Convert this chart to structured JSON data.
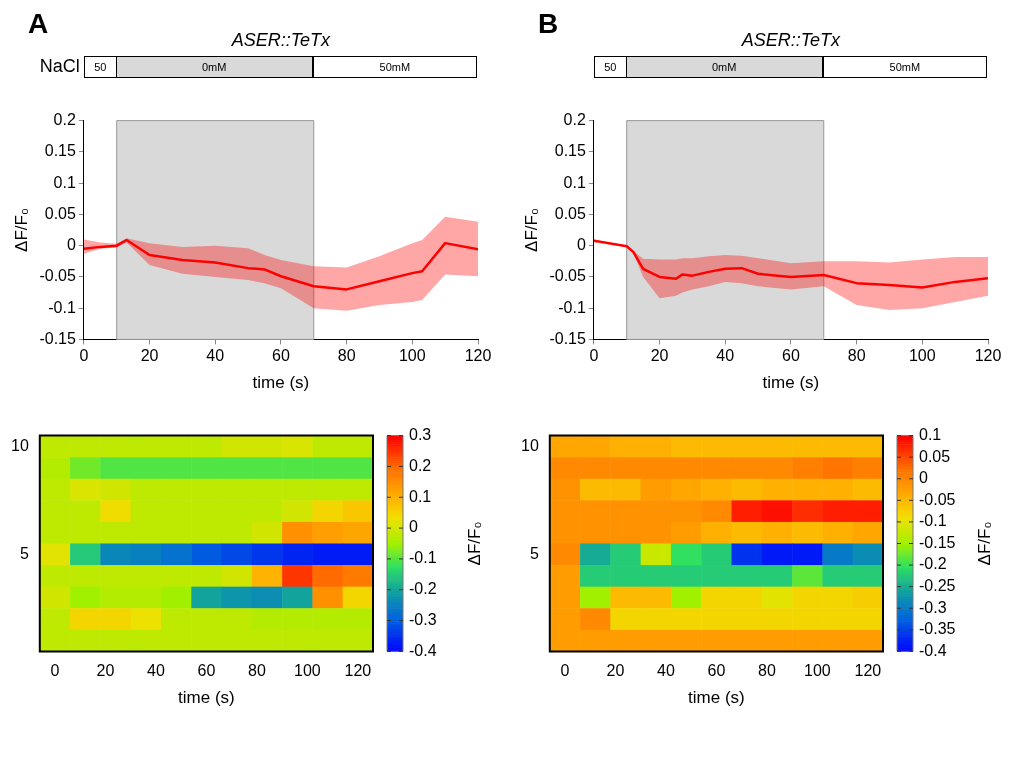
{
  "chart_data": [
    {
      "type": "line",
      "title": "ASER::TeTx",
      "xlabel": "time (s)",
      "ylabel": "ΔF/F₀",
      "annotations": [
        "A",
        "NaCl",
        "50",
        "0mM",
        "50mM"
      ],
      "x": [
        0,
        5,
        10,
        13,
        20,
        30,
        40,
        50,
        55,
        60,
        70,
        80,
        90,
        100,
        103,
        110,
        120
      ],
      "series": [
        {
          "color": "#ff0000",
          "values": [
            -0.005,
            -0.002,
            0,
            0.009,
            -0.015,
            -0.023,
            -0.027,
            -0.036,
            -0.038,
            -0.049,
            -0.065,
            -0.07,
            -0.057,
            -0.044,
            -0.041,
            0.004,
            -0.006
          ],
          "upper": [
            0.01,
            0.005,
            0.003,
            0.012,
            0.004,
            -0.002,
            0,
            -0.004,
            -0.015,
            -0.023,
            -0.033,
            -0.035,
            -0.017,
            0.004,
            0.009,
            0.046,
            0.038
          ],
          "lower": [
            -0.013,
            -0.005,
            -0.003,
            0.005,
            -0.031,
            -0.045,
            -0.05,
            -0.055,
            -0.06,
            -0.068,
            -0.1,
            -0.104,
            -0.095,
            -0.09,
            -0.087,
            -0.046,
            -0.049
          ]
        }
      ],
      "bands": [
        {
          "axis": "x",
          "from": 10,
          "to": 70,
          "color": "#d9d9d9"
        }
      ],
      "xlim": [
        0,
        120
      ],
      "xticks": [
        0,
        20,
        40,
        60,
        80,
        100,
        120
      ],
      "ylim": [
        -0.15,
        0.2
      ],
      "yticks": [
        -0.15,
        -0.1,
        -0.05,
        0,
        0.05,
        0.1,
        0.15,
        0.2
      ]
    },
    {
      "type": "line",
      "title": "ASER::TeTx",
      "xlabel": "time (s)",
      "ylabel": "ΔF/F₀",
      "annotations": [
        "B",
        "50",
        "0mM",
        "50mM"
      ],
      "x": [
        0,
        10,
        12,
        15,
        20,
        25,
        27,
        30,
        35,
        40,
        45,
        50,
        60,
        70,
        80,
        90,
        100,
        110,
        120
      ],
      "series": [
        {
          "color": "#ff0000",
          "values": [
            0.008,
            -0.001,
            -0.01,
            -0.037,
            -0.05,
            -0.053,
            -0.046,
            -0.048,
            -0.042,
            -0.037,
            -0.036,
            -0.045,
            -0.05,
            -0.047,
            -0.06,
            -0.063,
            -0.067,
            -0.058,
            -0.052
          ],
          "upper": [
            0.01,
            0,
            -0.008,
            -0.021,
            -0.022,
            -0.022,
            -0.02,
            -0.02,
            -0.017,
            -0.015,
            -0.016,
            -0.02,
            -0.028,
            -0.025,
            -0.025,
            -0.027,
            -0.022,
            -0.018,
            -0.018
          ],
          "lower": [
            0.005,
            -0.002,
            -0.012,
            -0.05,
            -0.084,
            -0.08,
            -0.075,
            -0.07,
            -0.065,
            -0.058,
            -0.06,
            -0.065,
            -0.07,
            -0.065,
            -0.095,
            -0.103,
            -0.1,
            -0.09,
            -0.08
          ]
        }
      ],
      "bands": [
        {
          "axis": "x",
          "from": 10,
          "to": 70,
          "color": "#d9d9d9"
        }
      ],
      "xlim": [
        0,
        120
      ],
      "xticks": [
        0,
        20,
        40,
        60,
        80,
        100,
        120
      ],
      "ylim": [
        -0.15,
        0.2
      ],
      "yticks": [
        -0.15,
        -0.1,
        -0.05,
        0,
        0.05,
        0.1,
        0.15,
        0.2
      ]
    },
    {
      "type": "heatmap",
      "xlabel": "time (s)",
      "clabel": "ΔF/F₀",
      "x": [
        0,
        12,
        24,
        36,
        48,
        60,
        72,
        84,
        96,
        108,
        120
      ],
      "y_categories": [
        "10",
        null,
        null,
        null,
        null,
        "5",
        null,
        null,
        null,
        null
      ],
      "cells": [
        [
          -0.02,
          -0.02,
          -0.02,
          -0.02,
          -0.02,
          -0.02,
          0,
          0,
          0.01,
          -0.02,
          -0.02
        ],
        [
          -0.03,
          -0.08,
          -0.1,
          -0.1,
          -0.1,
          -0.1,
          -0.1,
          -0.1,
          -0.1,
          -0.1,
          -0.1
        ],
        [
          -0.02,
          0.01,
          0,
          -0.02,
          -0.02,
          -0.02,
          -0.02,
          -0.02,
          -0.02,
          -0.02,
          -0.02
        ],
        [
          -0.02,
          -0.02,
          0.04,
          -0.02,
          -0.02,
          -0.02,
          -0.02,
          -0.02,
          0,
          0.05,
          0.07
        ],
        [
          -0.02,
          -0.02,
          -0.02,
          -0.02,
          -0.02,
          -0.02,
          -0.02,
          0,
          0.15,
          0.13,
          0.12
        ],
        [
          0.02,
          -0.15,
          -0.24,
          -0.25,
          -0.27,
          -0.3,
          -0.32,
          -0.34,
          -0.36,
          -0.37,
          -0.37
        ],
        [
          -0.02,
          -0.02,
          -0.02,
          -0.02,
          -0.02,
          -0.02,
          0,
          0.1,
          0.25,
          0.2,
          0.18
        ],
        [
          0,
          -0.05,
          -0.03,
          -0.03,
          -0.05,
          -0.2,
          -0.22,
          -0.23,
          -0.2,
          0.15,
          0.05
        ],
        [
          -0.02,
          0.05,
          0.05,
          0.03,
          -0.02,
          -0.02,
          -0.02,
          -0.03,
          -0.03,
          -0.03,
          -0.03
        ],
        [
          -0.02,
          -0.02,
          -0.02,
          -0.02,
          -0.02,
          -0.02,
          -0.02,
          -0.02,
          -0.02,
          -0.02,
          -0.02
        ]
      ],
      "clim": [
        -0.4,
        0.3
      ],
      "cticks": [
        -0.4,
        -0.3,
        -0.2,
        -0.1,
        0,
        0.1,
        0.2,
        0.3
      ],
      "xlim": [
        -6,
        126
      ],
      "xticks": [
        0,
        20,
        40,
        60,
        80,
        100,
        120
      ]
    },
    {
      "type": "heatmap",
      "xlabel": "time (s)",
      "clabel": "ΔF/F₀",
      "x": [
        0,
        12,
        24,
        36,
        48,
        60,
        72,
        84,
        96,
        108,
        120
      ],
      "y_categories": [
        "10",
        null,
        null,
        null,
        null,
        "5",
        null,
        null,
        null,
        null
      ],
      "cells": [
        [
          -0.03,
          -0.03,
          -0.04,
          -0.04,
          -0.05,
          -0.05,
          -0.05,
          -0.05,
          -0.05,
          -0.05,
          -0.05
        ],
        [
          0,
          0,
          0,
          0,
          0,
          0,
          0,
          0,
          0.01,
          0.02,
          0.01
        ],
        [
          -0.01,
          -0.05,
          -0.05,
          -0.02,
          -0.03,
          -0.04,
          -0.05,
          -0.04,
          -0.04,
          -0.04,
          -0.05
        ],
        [
          -0.01,
          -0.01,
          -0.01,
          -0.01,
          -0.01,
          0,
          0.08,
          0.09,
          0.07,
          0.08,
          0.08
        ],
        [
          -0.01,
          -0.01,
          -0.01,
          -0.01,
          -0.02,
          -0.04,
          -0.05,
          -0.04,
          -0.05,
          -0.04,
          -0.03
        ],
        [
          0,
          -0.25,
          -0.22,
          -0.12,
          -0.2,
          -0.22,
          -0.36,
          -0.38,
          -0.38,
          -0.3,
          -0.28
        ],
        [
          -0.02,
          -0.22,
          -0.22,
          -0.22,
          -0.22,
          -0.22,
          -0.22,
          -0.22,
          -0.18,
          -0.22,
          -0.22
        ],
        [
          -0.02,
          -0.15,
          -0.05,
          -0.05,
          -0.15,
          -0.08,
          -0.08,
          -0.1,
          -0.08,
          -0.08,
          -0.07
        ],
        [
          -0.02,
          0,
          -0.08,
          -0.08,
          -0.08,
          -0.08,
          -0.08,
          -0.08,
          -0.08,
          -0.08,
          -0.08
        ],
        [
          -0.02,
          -0.02,
          -0.02,
          -0.02,
          -0.02,
          -0.02,
          -0.02,
          -0.02,
          -0.02,
          -0.02,
          -0.02
        ]
      ],
      "clim": [
        -0.4,
        0.1
      ],
      "cticks": [
        -0.4,
        -0.35,
        -0.3,
        -0.25,
        -0.2,
        -0.15,
        -0.1,
        -0.05,
        0,
        0.05,
        0.1
      ],
      "xlim": [
        -6,
        126
      ],
      "xticks": [
        0,
        20,
        40,
        60,
        80,
        100,
        120
      ]
    }
  ]
}
